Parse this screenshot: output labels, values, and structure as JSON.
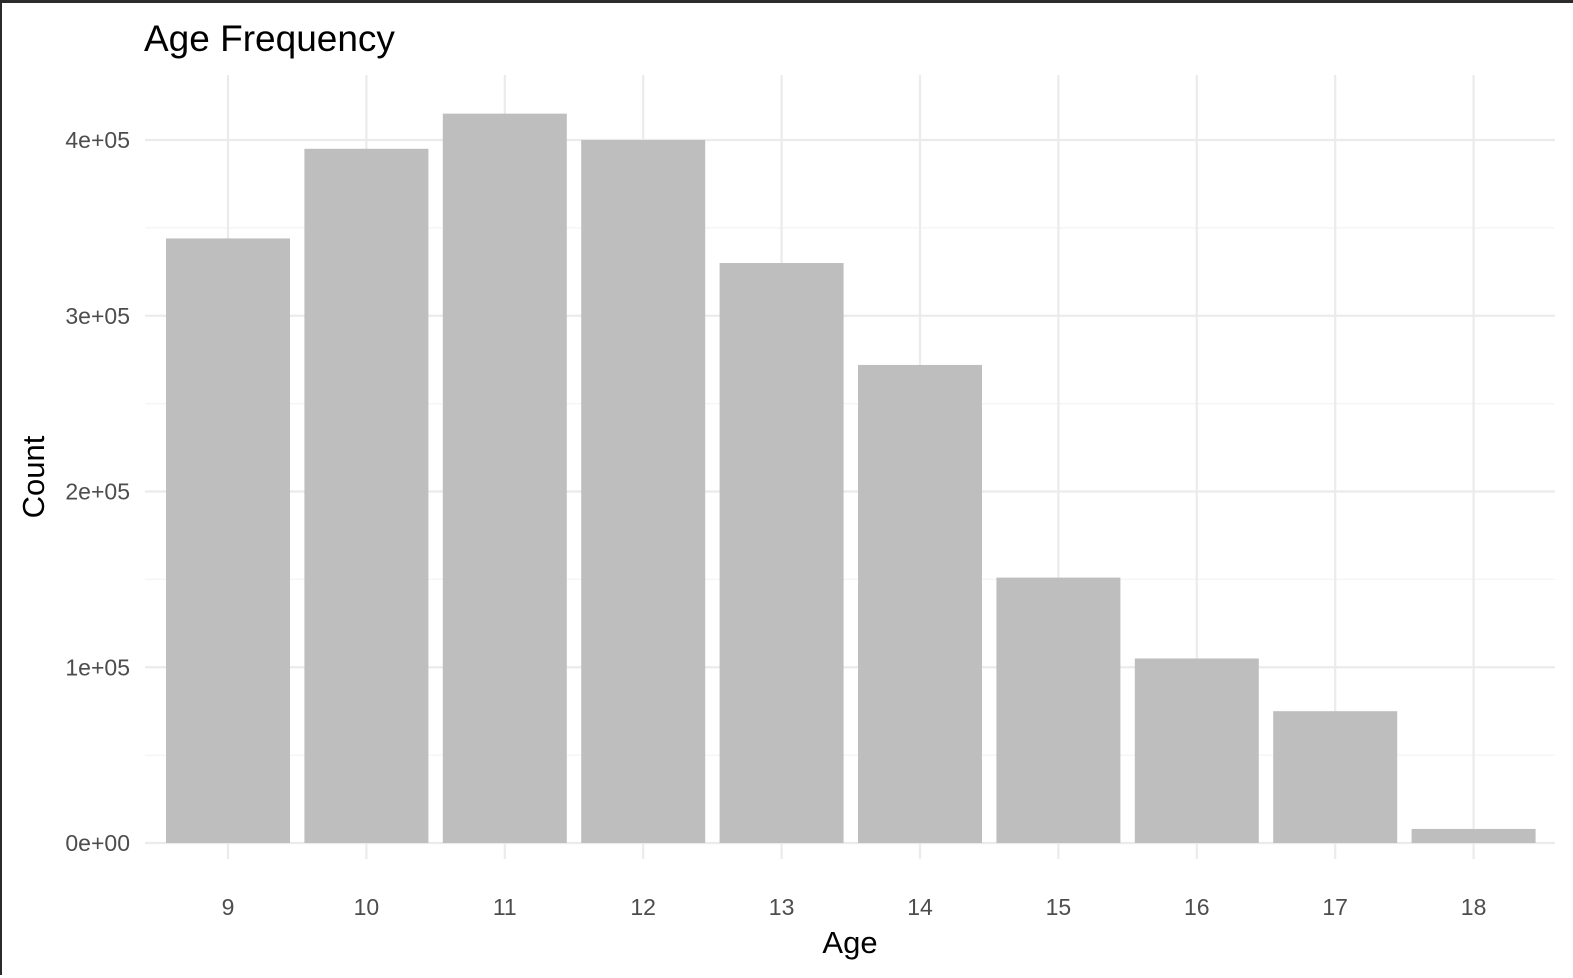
{
  "chart_data": {
    "type": "bar",
    "title": "Age Frequency",
    "xlabel": "Age",
    "ylabel": "Count",
    "categories": [
      "9",
      "10",
      "11",
      "12",
      "13",
      "14",
      "15",
      "16",
      "17",
      "18"
    ],
    "values": [
      344000,
      395000,
      415000,
      400000,
      330000,
      272000,
      151000,
      105000,
      75000,
      8000
    ],
    "ylim": [
      0,
      430000
    ],
    "yticks": [
      0,
      100000,
      200000,
      300000,
      400000
    ],
    "ytick_labels": [
      "0e+00",
      "1e+05",
      "2e+05",
      "3e+05",
      "4e+05"
    ],
    "grid": true,
    "legend": "none",
    "colors": {
      "bar": "#bebebe",
      "grid_major": "#ebebeb",
      "grid_minor": "#f4f4f4",
      "tick_text": "#4d4d4d",
      "text": "#000000"
    }
  }
}
